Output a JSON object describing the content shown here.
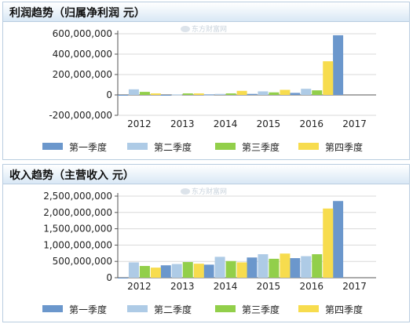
{
  "colors": {
    "q1": "#6b97cc",
    "q2": "#aecbe6",
    "q3": "#92cf4a",
    "q4": "#f7dc4e",
    "axis": "#555555",
    "grid": "#d8d8d8"
  },
  "watermark": "东方财富网",
  "legend": [
    "第一季度",
    "第二季度",
    "第三季度",
    "第四季度"
  ],
  "charts": {
    "profit": {
      "title": "利润趋势（归属净利润 元）"
    },
    "revenue": {
      "title": "收入趋势（主营收入 元）"
    }
  },
  "chart_data": [
    {
      "type": "bar",
      "title": "利润趋势（归属净利润 元）",
      "categories": [
        "2012",
        "2013",
        "2014",
        "2015",
        "2016",
        "2017"
      ],
      "ylim": [
        -200000000,
        600000000
      ],
      "yticks": [
        {
          "value": 600000000,
          "label": "600,000,000"
        },
        {
          "value": 400000000,
          "label": "400,000,000"
        },
        {
          "value": 200000000,
          "label": "200,000,000"
        },
        {
          "value": 0,
          "label": "0"
        },
        {
          "value": -200000000,
          "label": "-200,000,000"
        }
      ],
      "series": [
        {
          "name": "第一季度",
          "values": [
            0,
            -5000000,
            5000000,
            10000000,
            20000000,
            585000000
          ]
        },
        {
          "name": "第二季度",
          "values": [
            55000000,
            5000000,
            10000000,
            35000000,
            60000000,
            null
          ]
        },
        {
          "name": "第三季度",
          "values": [
            30000000,
            15000000,
            15000000,
            25000000,
            45000000,
            null
          ]
        },
        {
          "name": "第四季度",
          "values": [
            15000000,
            15000000,
            40000000,
            50000000,
            330000000,
            null
          ]
        }
      ]
    },
    {
      "type": "bar",
      "title": "收入趋势（主营收入 元）",
      "categories": [
        "2012",
        "2013",
        "2014",
        "2015",
        "2016",
        "2017"
      ],
      "ylim": [
        0,
        2500000000
      ],
      "yticks": [
        {
          "value": 2500000000,
          "label": "2,500,000,000"
        },
        {
          "value": 2000000000,
          "label": "2,000,000,000"
        },
        {
          "value": 1500000000,
          "label": "1,500,000,000"
        },
        {
          "value": 1000000000,
          "label": "1,000,000,000"
        },
        {
          "value": 500000000,
          "label": "500,000,000"
        },
        {
          "value": 0,
          "label": "0"
        }
      ],
      "series": [
        {
          "name": "第一季度",
          "values": [
            0,
            380000000,
            400000000,
            620000000,
            600000000,
            2350000000
          ]
        },
        {
          "name": "第二季度",
          "values": [
            470000000,
            420000000,
            640000000,
            720000000,
            660000000,
            null
          ]
        },
        {
          "name": "第三季度",
          "values": [
            360000000,
            480000000,
            510000000,
            580000000,
            720000000,
            null
          ]
        },
        {
          "name": "第四季度",
          "values": [
            310000000,
            430000000,
            470000000,
            740000000,
            2120000000,
            null
          ]
        }
      ]
    }
  ]
}
